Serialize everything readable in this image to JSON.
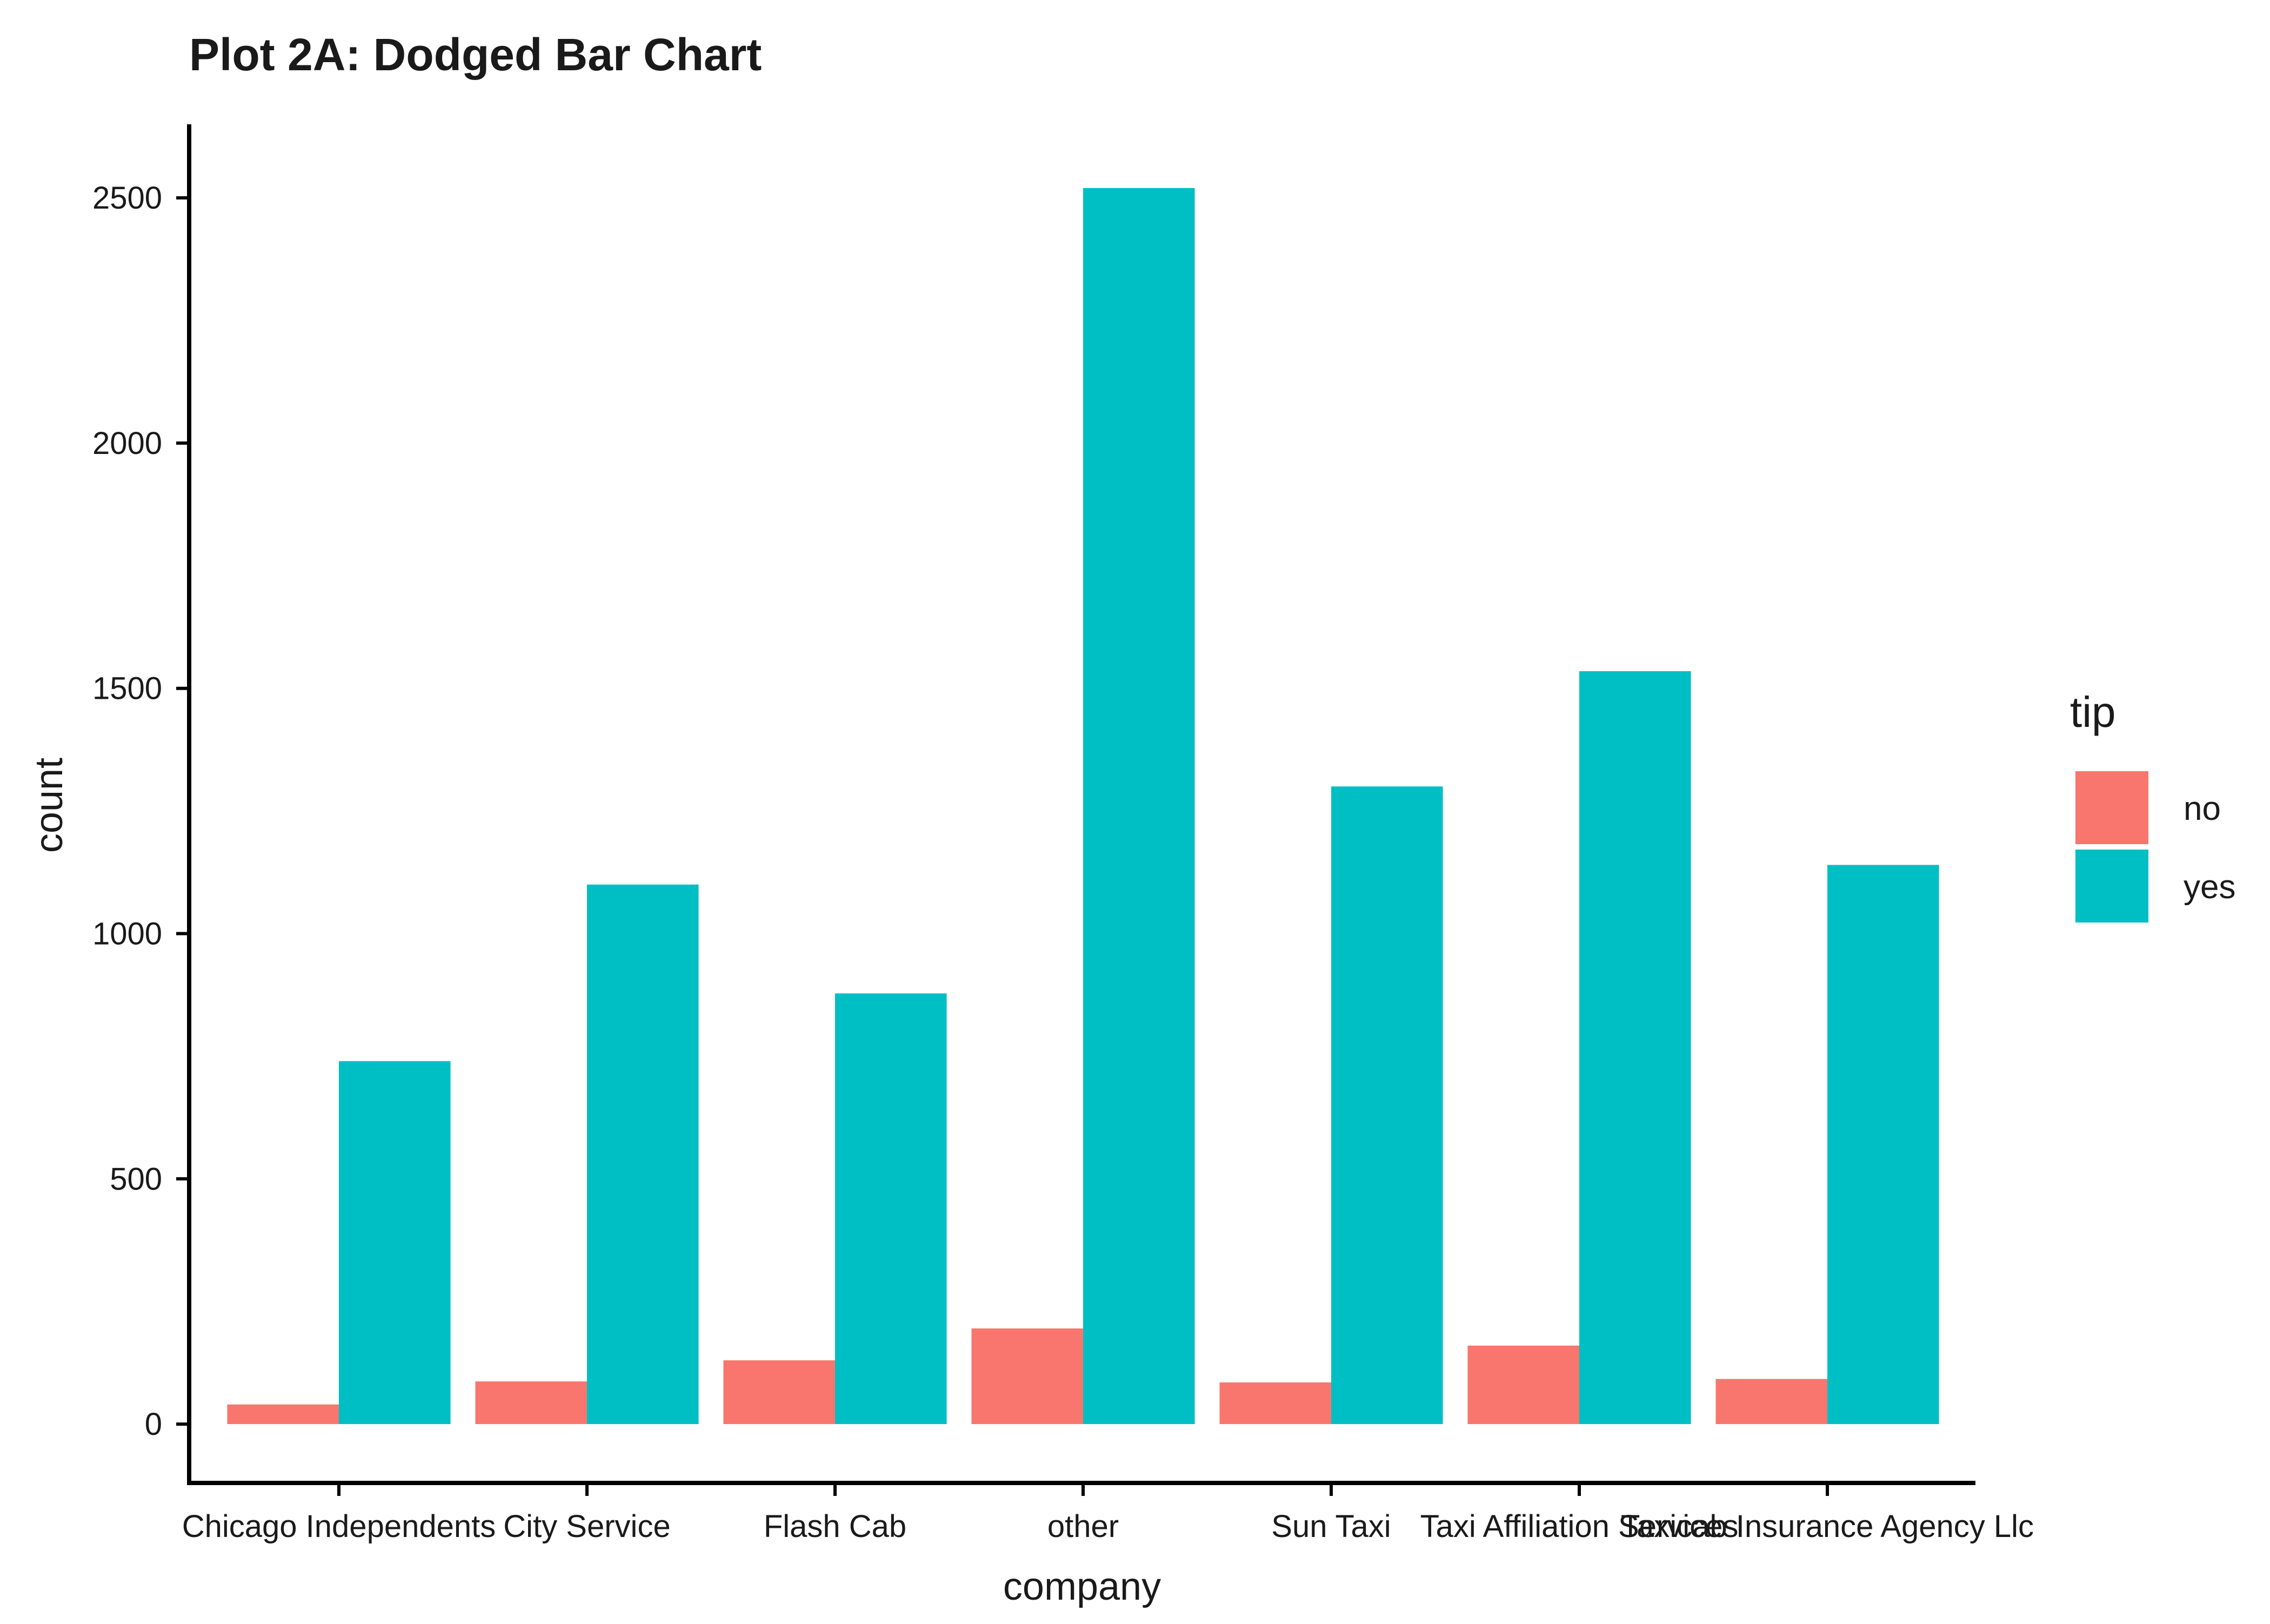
{
  "chart_data": {
    "type": "bar",
    "title": "Plot 2A: Dodged Bar Chart",
    "xlabel": "company",
    "ylabel": "count",
    "categories": [
      "Chicago Independents",
      "City Service",
      "Flash Cab",
      "other",
      "Sun Taxi",
      "Taxi Affiliation Services",
      "Taxicab Insurance Agency Llc"
    ],
    "series": [
      {
        "name": "no",
        "color": "#F8766D",
        "values": [
          40,
          87,
          130,
          195,
          85,
          160,
          92
        ]
      },
      {
        "name": "yes",
        "color": "#00BFC4",
        "values": [
          740,
          1100,
          878,
          2520,
          1300,
          1535,
          1140
        ]
      }
    ],
    "ylim": [
      -120,
      2650
    ],
    "yticks": [
      0,
      500,
      1000,
      1500,
      2000,
      2500
    ],
    "legend": {
      "title": "tip",
      "position": "right"
    },
    "grid": false
  }
}
